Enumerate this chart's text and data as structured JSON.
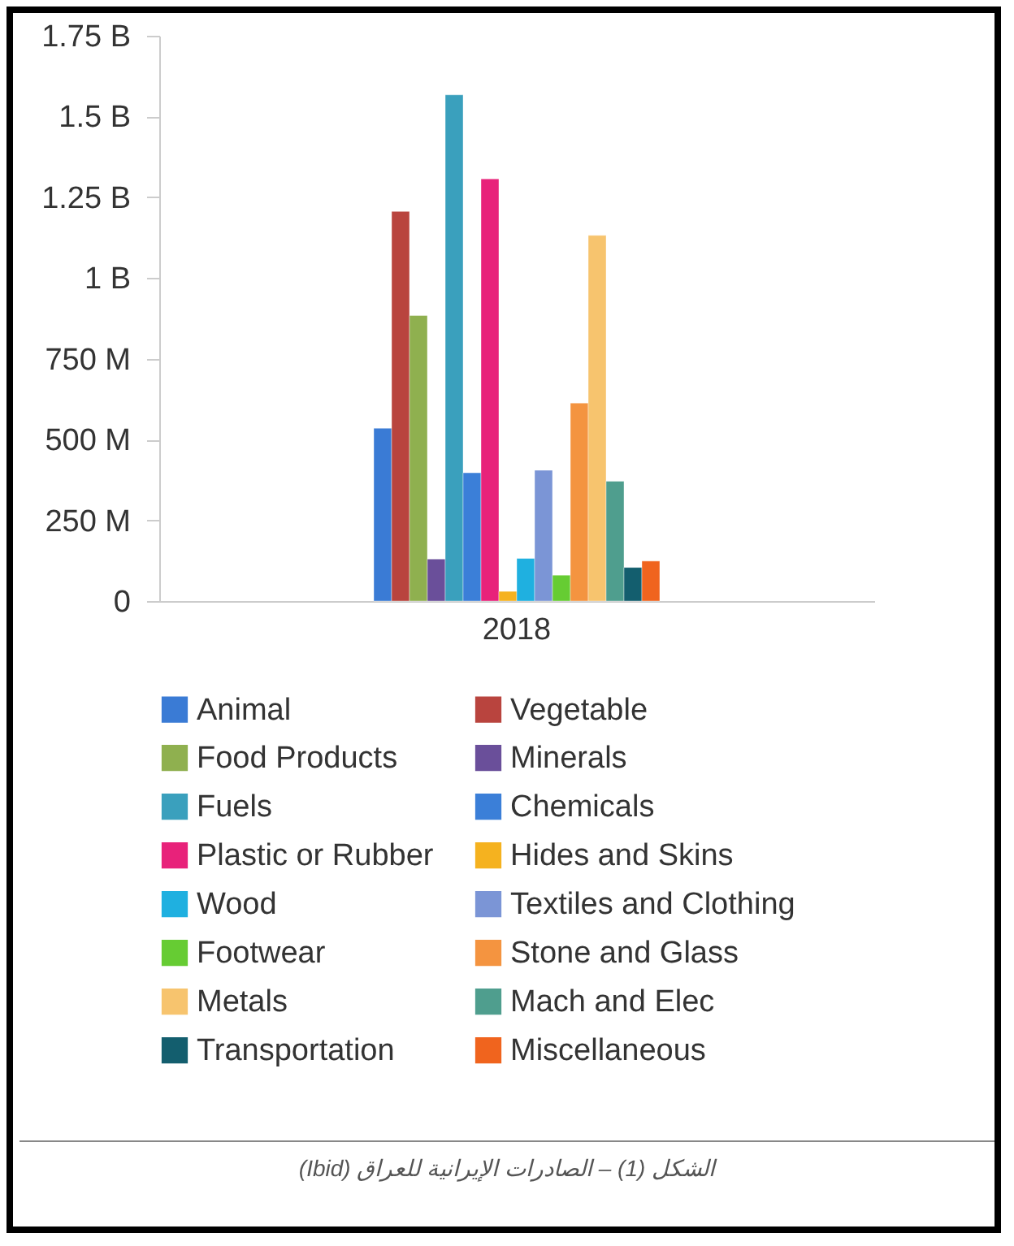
{
  "chart_data": {
    "type": "bar",
    "categories": [
      "2018"
    ],
    "series": [
      {
        "name": "Animal",
        "color": "#3a7bd5",
        "values": [
          535000000
        ]
      },
      {
        "name": "Vegetable",
        "color": "#b9443e",
        "values": [
          1206000000
        ]
      },
      {
        "name": "Food Products",
        "color": "#8fb04f",
        "values": [
          884000000
        ]
      },
      {
        "name": "Minerals",
        "color": "#6a4f9a",
        "values": [
          130000000
        ]
      },
      {
        "name": "Fuels",
        "color": "#3aa0bd",
        "values": [
          1567000000
        ]
      },
      {
        "name": "Chemicals",
        "color": "#3b7fd8",
        "values": [
          397000000
        ]
      },
      {
        "name": "Plastic or Rubber",
        "color": "#e8227a",
        "values": [
          1307000000
        ]
      },
      {
        "name": "Hides and Skins",
        "color": "#f5b21f",
        "values": [
          30000000
        ]
      },
      {
        "name": "Wood",
        "color": "#1fb0e0",
        "values": [
          132000000
        ]
      },
      {
        "name": "Textiles and Clothing",
        "color": "#7b95d6",
        "values": [
          405000000
        ]
      },
      {
        "name": "Footwear",
        "color": "#66cc33",
        "values": [
          80000000
        ]
      },
      {
        "name": "Stone and Glass",
        "color": "#f49440",
        "values": [
          613000000
        ]
      },
      {
        "name": "Metals",
        "color": "#f7c46e",
        "values": [
          1132000000
        ]
      },
      {
        "name": "Mach and Elec",
        "color": "#4f9e8e",
        "values": [
          371000000
        ]
      },
      {
        "name": "Transportation",
        "color": "#135e6e",
        "values": [
          104000000
        ]
      },
      {
        "name": "Miscellaneous",
        "color": "#f0641e",
        "values": [
          124000000
        ]
      }
    ],
    "ylim": [
      0,
      1750000000
    ],
    "yticks": [
      {
        "value": 0,
        "label": "0"
      },
      {
        "value": 250000000,
        "label": "250 M"
      },
      {
        "value": 500000000,
        "label": "500 M"
      },
      {
        "value": 750000000,
        "label": "750 M"
      },
      {
        "value": 1000000000,
        "label": "1 B"
      },
      {
        "value": 1250000000,
        "label": "1.25 B"
      },
      {
        "value": 1500000000,
        "label": "1.5 B"
      },
      {
        "value": 1750000000,
        "label": "1.75 B"
      }
    ],
    "grid": false,
    "legend": "bottom",
    "annotations": [
      "الشكل (1) – الصادرات الإيرانية للعراق (Ibid)"
    ]
  }
}
